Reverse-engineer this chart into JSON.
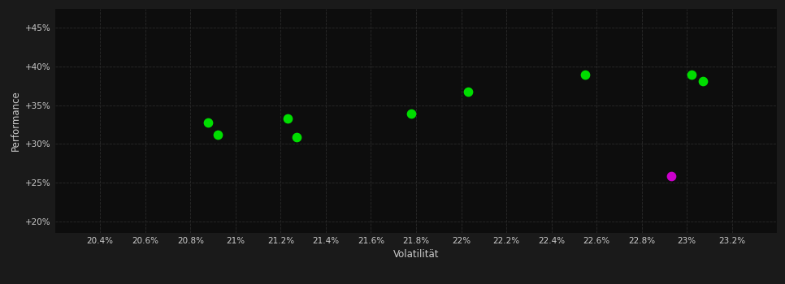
{
  "background_color": "#1a1a1a",
  "plot_bg_color": "#0d0d0d",
  "grid_color": "#2a2a2a",
  "text_color": "#cccccc",
  "xlabel": "Volatilität",
  "ylabel": "Performance",
  "xlim": [
    0.202,
    0.234
  ],
  "ylim": [
    0.185,
    0.475
  ],
  "xticks": [
    0.204,
    0.206,
    0.208,
    0.21,
    0.212,
    0.214,
    0.216,
    0.218,
    0.22,
    0.222,
    0.224,
    0.226,
    0.228,
    0.23,
    0.232
  ],
  "yticks": [
    0.2,
    0.25,
    0.3,
    0.35,
    0.4,
    0.45
  ],
  "green_points": [
    [
      0.2088,
      0.328
    ],
    [
      0.2092,
      0.312
    ],
    [
      0.2123,
      0.333
    ],
    [
      0.2127,
      0.309
    ],
    [
      0.2178,
      0.339
    ],
    [
      0.2203,
      0.368
    ],
    [
      0.2255,
      0.39
    ],
    [
      0.2302,
      0.39
    ],
    [
      0.2307,
      0.381
    ]
  ],
  "magenta_points": [
    [
      0.2293,
      0.258
    ]
  ],
  "green_color": "#00dd00",
  "magenta_color": "#cc00cc",
  "marker_size": 55
}
